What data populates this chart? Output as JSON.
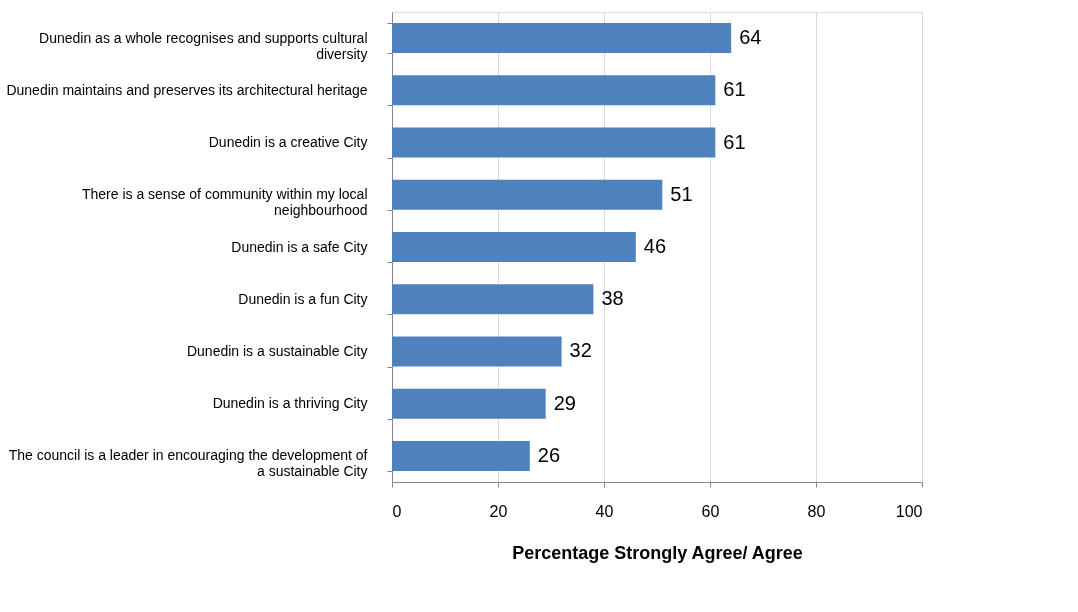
{
  "chart_data": {
    "type": "bar",
    "orientation": "horizontal",
    "xlabel": "Percentage Strongly Agree/ Agree",
    "categories": [
      "Dunedin as a whole recognises and supports cultural diversity",
      "Dunedin maintains and preserves its architectural heritage",
      "Dunedin is a creative City",
      "There is a sense of community within my local neighbourhood",
      "Dunedin is a safe City",
      "Dunedin is a fun City",
      "Dunedin is a sustainable City",
      "Dunedin is a thriving City",
      "The council is a leader in encouraging the development of a sustainable City"
    ],
    "values": [
      64,
      61,
      61,
      51,
      46,
      38,
      32,
      29,
      26
    ],
    "color": "#4f81bd",
    "xlim": [
      0,
      100
    ],
    "xticks": [
      0,
      20,
      40,
      60,
      80,
      100
    ],
    "grid": "x",
    "data_labels": true
  }
}
